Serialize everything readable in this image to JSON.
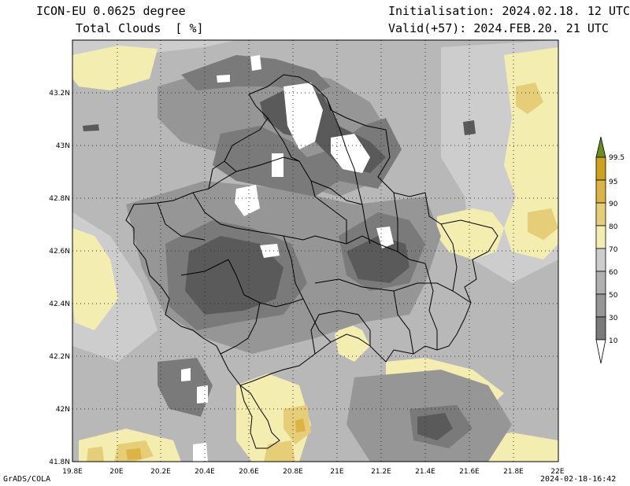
{
  "header": {
    "model": "ICON-EU 0.0625 degree",
    "field": "Total Clouds  [ %]",
    "initialisation": "Initialisation: 2024.02.18. 12 UTC",
    "valid": "Valid(+57): 2024.FEB.20. 21 UTC"
  },
  "footer": {
    "credit": "GrADS/COLA",
    "timestamp": "2024-02-18-16:42"
  },
  "map": {
    "lon_ticks": [
      "19.8E",
      "20E",
      "20.2E",
      "20.4E",
      "20.6E",
      "20.8E",
      "21E",
      "21.2E",
      "21.4E",
      "21.6E",
      "21.8E",
      "22E"
    ],
    "lat_ticks": [
      "43.2N",
      "43N",
      "42.8N",
      "42.6N",
      "42.4N",
      "42.2N",
      "42N",
      "41.8N"
    ],
    "extent": {
      "lon_min": 19.8,
      "lon_max": 22.0,
      "lat_min": 41.8,
      "lat_max": 43.4
    }
  },
  "colorbar": {
    "labels": [
      "10",
      "30",
      "50",
      "60",
      "70",
      "80",
      "90",
      "95",
      "99.5"
    ],
    "colors": [
      "#ffffff",
      "#5a5a5a",
      "#7a7a7a",
      "#969696",
      "#b0b0b0",
      "#cdcdcd",
      "#f3eeb0",
      "#e6cd78",
      "#dcb446",
      "#cfa21e",
      "#6e8c1e"
    ]
  },
  "legend_levels": [
    "10",
    "30",
    "50",
    "60",
    "70",
    "80",
    "90",
    "95",
    "99.5"
  ]
}
